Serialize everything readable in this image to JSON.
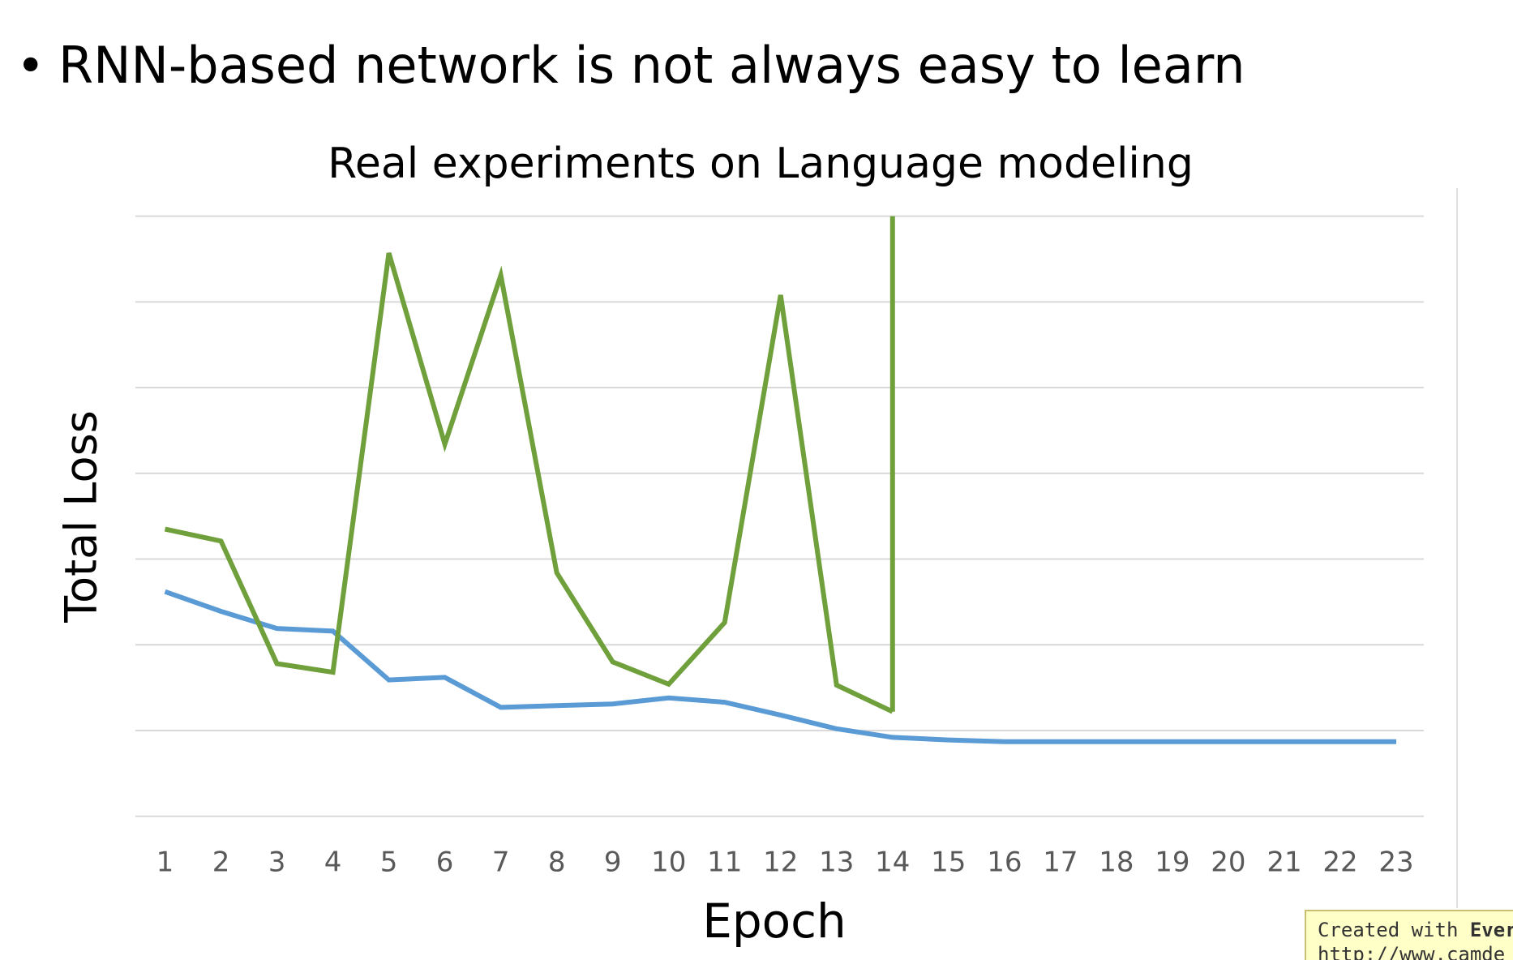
{
  "bullet": "RNN-based network is not always easy to learn",
  "chart_data": {
    "type": "line",
    "title": "Real experiments on Language modeling",
    "x_label": "Epoch",
    "y_label": "Total Loss",
    "categories": [
      "1",
      "2",
      "3",
      "4",
      "5",
      "6",
      "7",
      "8",
      "9",
      "10",
      "11",
      "12",
      "13",
      "14",
      "15",
      "16",
      "17",
      "18",
      "19",
      "20",
      "21",
      "22",
      "23"
    ],
    "series": [
      {
        "color": "#5b9bd5",
        "values": [
          2.62,
          2.39,
          2.19,
          2.16,
          1.59,
          1.62,
          1.27,
          1.29,
          1.31,
          1.38,
          1.33,
          1.18,
          1.02,
          0.92,
          0.89,
          0.87,
          0.87,
          0.87,
          0.87,
          0.87,
          0.87,
          0.87,
          0.87
        ]
      },
      {
        "color": "#70a03c",
        "values": [
          3.35,
          3.21,
          1.78,
          1.68,
          6.57,
          4.34,
          6.31,
          2.84,
          1.8,
          1.54,
          2.26,
          6.08,
          1.53,
          1.22,
          null,
          null,
          null,
          null,
          null,
          null,
          null,
          null,
          null
        ]
      }
    ],
    "ylim": [
      0,
      7
    ],
    "ygrid": [
      0,
      1,
      2,
      3,
      4,
      5,
      6,
      7
    ],
    "grid": true
  },
  "watermark": {
    "prefix": "Created with ",
    "brand": "Ever",
    "url": "http://www.camde"
  }
}
